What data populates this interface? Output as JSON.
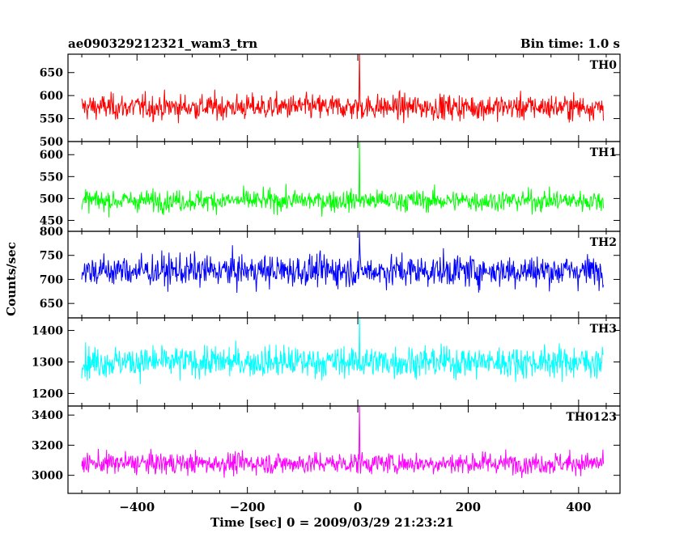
{
  "header": {
    "left_title": "ae090329212321_wam3_trn",
    "right_title": "Bin time: 1.0 s"
  },
  "axes": {
    "xlabel": "Time [sec] 0 = 2009/03/29 21:23:21",
    "ylabel": "Counts/sec"
  },
  "chart_data": {
    "type": "line",
    "xlim": [
      -525,
      475
    ],
    "x_ticks": [
      -400,
      -200,
      0,
      200,
      400
    ],
    "x_tick_labels": [
      "−400",
      "−200",
      "0",
      "200",
      "400"
    ],
    "data_x_range": [
      -500,
      445
    ],
    "panels": [
      {
        "name": "TH0",
        "color": "#ff0000",
        "ylim": [
          500,
          690
        ],
        "yticks": [
          500,
          550,
          600,
          650
        ],
        "mean": 575,
        "spread": 25,
        "peak_x": 3,
        "peak_y": 700
      },
      {
        "name": "TH1",
        "color": "#00ff00",
        "ylim": [
          425,
          630
        ],
        "yticks": [
          450,
          500,
          550,
          600
        ],
        "mean": 495,
        "spread": 22,
        "peak_x": 3,
        "peak_y": 635
      },
      {
        "name": "TH2",
        "color": "#0000ff",
        "ylim": [
          620,
          800
        ],
        "yticks": [
          650,
          700,
          750,
          800
        ],
        "mean": 718,
        "spread": 30,
        "peak_x": 3,
        "peak_y": 800
      },
      {
        "name": "TH3",
        "color": "#00ffff",
        "ylim": [
          1160,
          1440
        ],
        "yticks": [
          1200,
          1300,
          1400
        ],
        "mean": 1300,
        "spread": 45,
        "peak_x": 3,
        "peak_y": 1450
      },
      {
        "name": "TH0123",
        "color": "#ff00ff",
        "ylim": [
          2880,
          3460
        ],
        "yticks": [
          3000,
          3200,
          3400
        ],
        "mean": 3080,
        "spread": 65,
        "peak_x": 3,
        "peak_y": 3480
      }
    ]
  }
}
